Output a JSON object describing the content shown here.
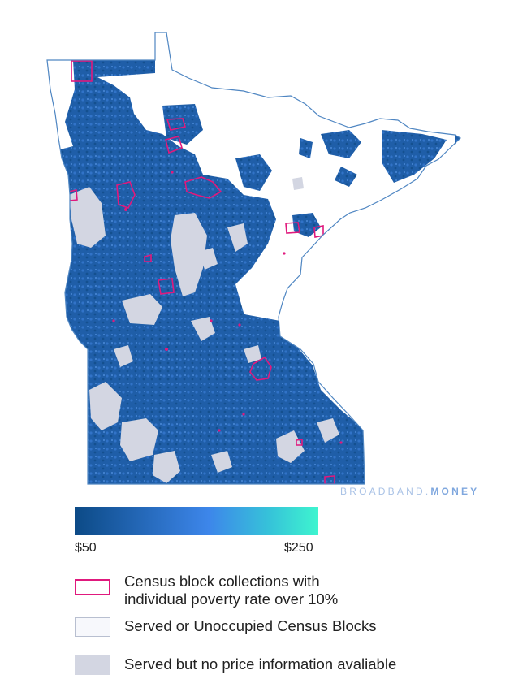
{
  "map": {
    "state": "Minnesota"
  },
  "watermark": {
    "part1": "BROADBAND.",
    "part2": "MONEY"
  },
  "legend": {
    "gradient": {
      "min_label": "$50",
      "max_label": "$250",
      "colors": [
        "#0c4a86",
        "#3d86ea",
        "#36c3d9",
        "#3ef5cf"
      ]
    },
    "items": [
      {
        "label_line1": "Census block collections with",
        "label_line2": "individual poverty rate over 10%",
        "color": "#e0197d"
      },
      {
        "label": "Served or Unoccupied Census Blocks",
        "color": "#f7f8fc"
      },
      {
        "label": "Served but no price information avaliable",
        "color": "#d3d6e2"
      }
    ]
  }
}
